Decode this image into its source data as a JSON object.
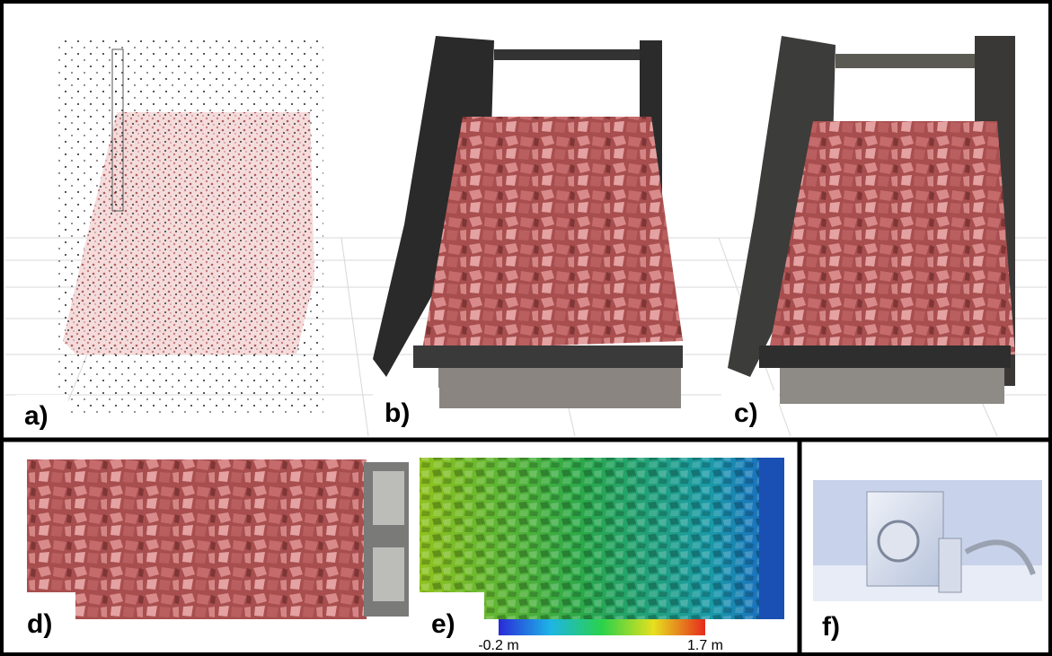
{
  "panels": {
    "a": {
      "label": "a)"
    },
    "b": {
      "label": "b)"
    },
    "c": {
      "label": "c)"
    },
    "d": {
      "label": "d)"
    },
    "e": {
      "label": "e)"
    },
    "f": {
      "label": "f)"
    }
  },
  "colorbar": {
    "min_label": "-0.2 m",
    "max_label": "1.7 m"
  }
}
